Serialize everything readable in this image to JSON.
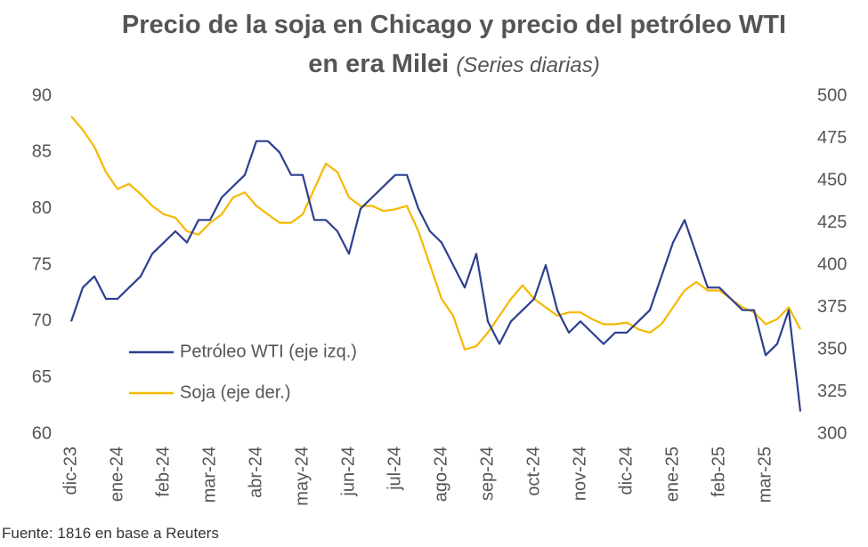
{
  "chart_data": {
    "type": "line",
    "title": "Precio de la soja en Chicago y precio del petróleo WTI en era Milei",
    "subtitle": "(Series diarias)",
    "source": "Fuente: 1816 en base a Reuters",
    "categories": [
      "dic-23",
      null,
      null,
      null,
      "ene-24",
      null,
      null,
      null,
      "feb-24",
      null,
      null,
      null,
      "mar-24",
      null,
      null,
      null,
      "abr-24",
      null,
      null,
      null,
      "may-24",
      null,
      null,
      null,
      "jun-24",
      null,
      null,
      null,
      "jul-24",
      null,
      null,
      null,
      "ago-24",
      null,
      null,
      null,
      "sep-24",
      null,
      null,
      null,
      "oct-24",
      null,
      null,
      null,
      "nov-24",
      null,
      null,
      null,
      "dic-24",
      null,
      null,
      null,
      "ene-25",
      null,
      null,
      null,
      "feb-25",
      null,
      null,
      null,
      "mar-25",
      null,
      null,
      null
    ],
    "series": [
      {
        "name": "Petróleo WTI (eje izq.)",
        "color": "#2e3f8f",
        "axis": "y",
        "values": [
          70,
          73,
          74,
          72,
          72,
          73,
          74,
          76,
          77,
          78,
          77,
          79,
          79,
          81,
          82,
          83,
          86,
          86,
          85,
          83,
          83,
          79,
          79,
          78,
          76,
          80,
          81,
          82,
          83,
          83,
          80,
          78,
          77,
          75,
          73,
          76,
          70,
          68,
          70,
          71,
          72,
          75,
          71,
          69,
          70,
          69,
          68,
          69,
          69,
          70,
          71,
          74,
          77,
          79,
          76,
          73,
          73,
          72,
          71,
          71,
          67,
          68,
          71,
          62
        ]
      },
      {
        "name": "Soja (eje der.)",
        "color": "#f5b800",
        "axis": "y2",
        "values": [
          488,
          480,
          470,
          455,
          445,
          448,
          442,
          435,
          430,
          428,
          420,
          418,
          425,
          430,
          440,
          443,
          435,
          430,
          425,
          425,
          430,
          445,
          460,
          455,
          440,
          435,
          435,
          432,
          433,
          435,
          420,
          400,
          380,
          370,
          350,
          352,
          360,
          370,
          380,
          388,
          380,
          375,
          370,
          372,
          372,
          368,
          365,
          365,
          366,
          362,
          360,
          365,
          375,
          385,
          390,
          385,
          385,
          380,
          375,
          372,
          365,
          368,
          375,
          362
        ]
      }
    ],
    "ylim": [
      60,
      90
    ],
    "yticks": [
      60,
      65,
      70,
      75,
      80,
      85,
      90
    ],
    "y2lim": [
      300,
      500
    ],
    "y2ticks": [
      300,
      325,
      350,
      375,
      400,
      425,
      450,
      475,
      500
    ]
  }
}
